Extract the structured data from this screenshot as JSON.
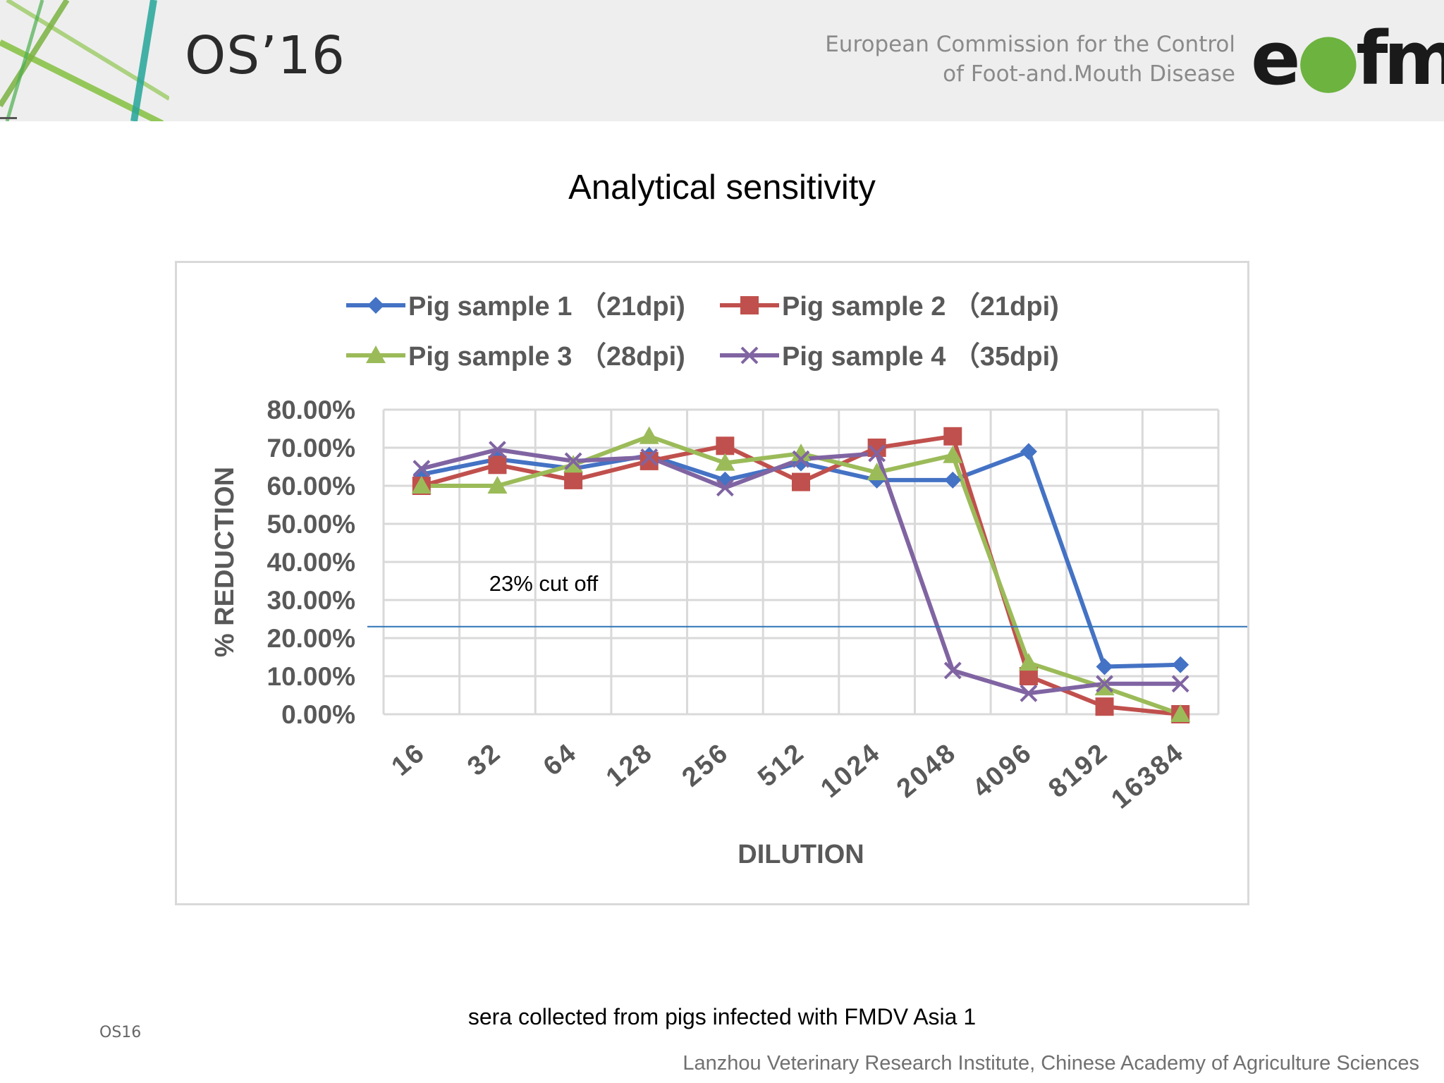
{
  "header": {
    "conference": "OS’16",
    "org_line1": "European Commission for the Control",
    "org_line2": "of Foot-and.Mouth Disease",
    "logo_pre": "e",
    "logo_leaf": "●",
    "logo_post": "fmd"
  },
  "slide_title": "Analytical sensitivity",
  "caption": "sera collected from pigs infected with FMDV Asia 1",
  "footer_left": "OS16",
  "footer_right": "Lanzhou Veterinary Research Institute, Chinese Academy of Agriculture Sciences",
  "colors": {
    "series1": "#4472c4",
    "series2": "#c0504d",
    "series3": "#9bbb59",
    "series4": "#8064a2",
    "cutoff": "#2e75b6",
    "grid": "#d9d9d9",
    "axis_text": "#595959"
  },
  "chart_data": {
    "type": "line",
    "title": "",
    "xlabel": "DILUTION",
    "ylabel": "% REDUCTION",
    "categories": [
      "16",
      "32",
      "64",
      "128",
      "256",
      "512",
      "1024",
      "2048",
      "4096",
      "8192",
      "16384"
    ],
    "yticks": [
      "0.00%",
      "10.00%",
      "20.00%",
      "30.00%",
      "40.00%",
      "50.00%",
      "60.00%",
      "70.00%",
      "80.00%"
    ],
    "ylim": [
      0,
      80
    ],
    "grid": true,
    "legend_position": "top",
    "series": [
      {
        "name": "Pig sample 1 （21dpi)",
        "marker": "diamond",
        "values": [
          63,
          67,
          64.5,
          68,
          61.5,
          66,
          61.5,
          61.5,
          69,
          12.5,
          13
        ]
      },
      {
        "name": "Pig sample 2 （21dpi)",
        "marker": "square",
        "values": [
          60,
          65.5,
          61.5,
          66.5,
          70.5,
          61,
          70,
          73,
          10,
          2,
          0
        ]
      },
      {
        "name": "Pig sample 3 （28dpi)",
        "marker": "triangle",
        "values": [
          60,
          60,
          65.5,
          73,
          66,
          68.5,
          63.5,
          68,
          13.5,
          7,
          0
        ]
      },
      {
        "name": "Pig sample 4 （35dpi)",
        "marker": "x",
        "values": [
          64.5,
          69.5,
          66.5,
          67.5,
          59.5,
          67,
          68.5,
          11.5,
          5.5,
          8,
          8
        ]
      }
    ],
    "cutoff": {
      "value": 23,
      "label": "23% cut off"
    }
  }
}
